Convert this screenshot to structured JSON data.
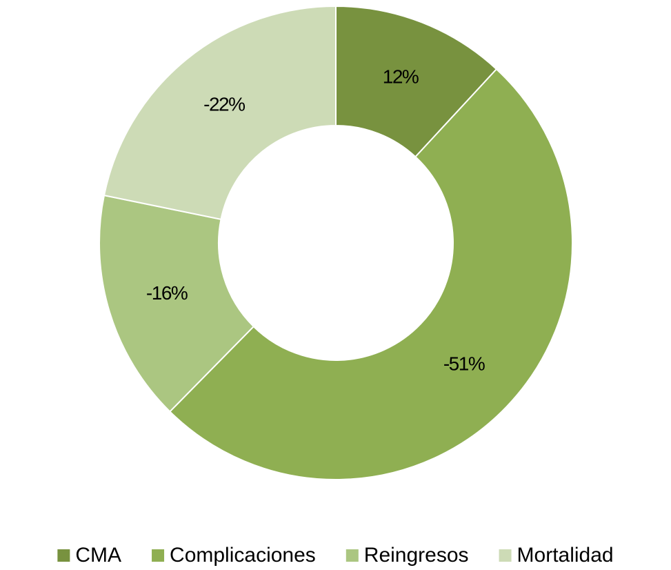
{
  "chart_data": {
    "type": "pie",
    "categories": [
      "CMA",
      "Complicaciones",
      "Reingresos",
      "Mortalidad"
    ],
    "values": [
      12,
      -51,
      -16,
      -22
    ],
    "value_labels": [
      "12%",
      "-51%",
      "-16%",
      "-22%"
    ],
    "colors": [
      "#78923f",
      "#8faf52",
      "#abc681",
      "#cddbb6"
    ],
    "legend": "bottom"
  }
}
